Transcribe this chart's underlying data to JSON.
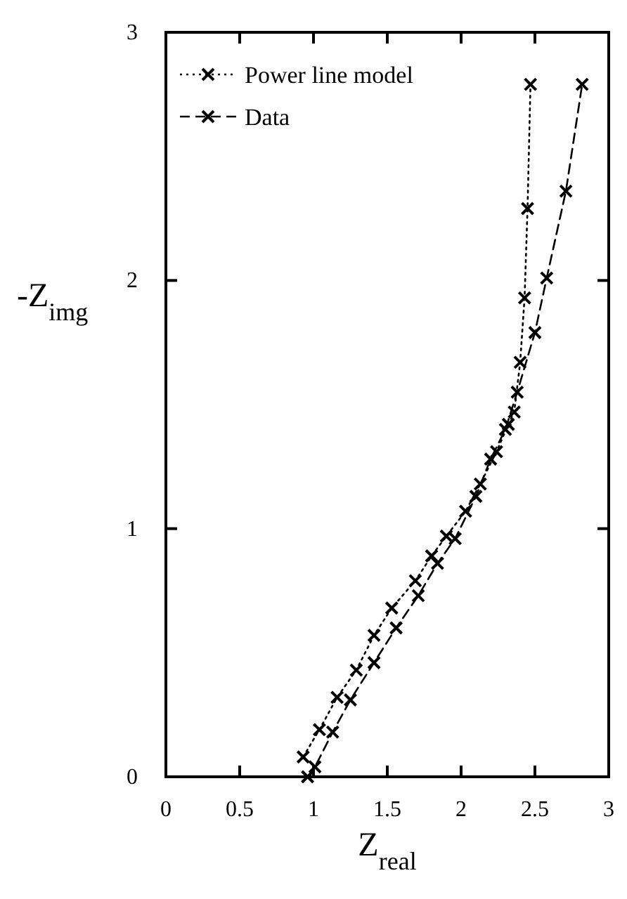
{
  "chart_data": {
    "type": "line",
    "xlabel": "Z$_{real}$",
    "ylabel": "-Z$_{img}$",
    "xlim": [
      0,
      3
    ],
    "xticks": [
      0,
      0.5,
      1,
      1.5,
      2,
      2.5,
      3
    ],
    "ylim": [
      0,
      3
    ],
    "yticks": [
      0,
      1,
      2,
      3
    ],
    "grid": false,
    "legend": "top left",
    "series": [
      {
        "name": "Power line model",
        "color": "#000000",
        "marker": "cross",
        "line_style": "dotted",
        "x": [
          0.93,
          1.04,
          1.16,
          1.29,
          1.41,
          1.53,
          1.69,
          1.8,
          1.9,
          2.03,
          2.13,
          2.24,
          2.32,
          2.36,
          2.4,
          2.43,
          2.45,
          2.47
        ],
        "values": [
          0.08,
          0.19,
          0.32,
          0.43,
          0.57,
          0.68,
          0.79,
          0.89,
          0.97,
          1.07,
          1.18,
          1.31,
          1.42,
          1.47,
          1.67,
          1.93,
          2.29,
          2.79
        ]
      },
      {
        "name": "Data",
        "color": "#000000",
        "marker": "cross",
        "line_style": "dashed",
        "x": [
          0.96,
          1.01,
          1.13,
          1.25,
          1.41,
          1.56,
          1.71,
          1.84,
          1.96,
          2.1,
          2.2,
          2.3,
          2.38,
          2.5,
          2.58,
          2.71,
          2.82
        ],
        "values": [
          0.0,
          0.04,
          0.18,
          0.31,
          0.46,
          0.6,
          0.73,
          0.86,
          0.96,
          1.13,
          1.28,
          1.4,
          1.55,
          1.79,
          2.01,
          2.36,
          2.79
        ]
      }
    ]
  }
}
